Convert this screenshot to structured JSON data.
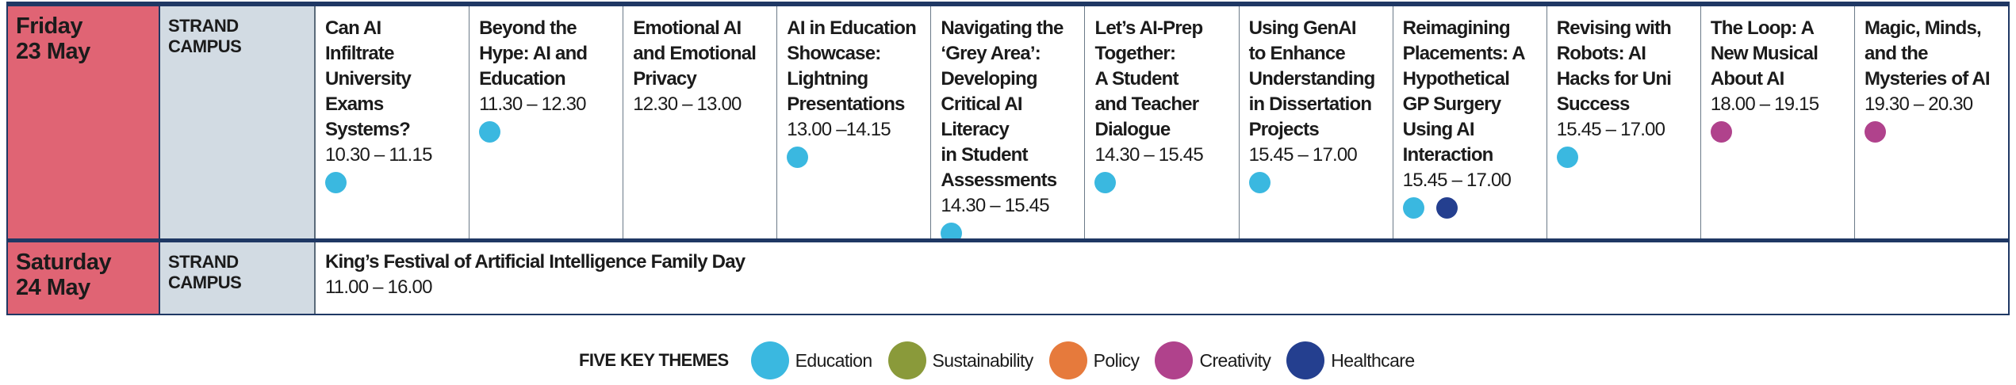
{
  "colors": {
    "Education": "#3ab8e0",
    "Sustainability": "#8a9a3a",
    "Policy": "#e67a3c",
    "Creativity": "#b0428c",
    "Healthcare": "#243f8f"
  },
  "rows": [
    {
      "day": "Friday\n23 May",
      "campus": "STRAND\nCAMPUS",
      "events": [
        {
          "title": "Can AI\nInfiltrate\nUniversity\nExams\nSystems?",
          "time": "10.30 – 11.15",
          "themes": [
            "Education"
          ]
        },
        {
          "title": "Beyond the\nHype: AI and\nEducation",
          "time": "11.30 – 12.30",
          "themes": [
            "Education"
          ]
        },
        {
          "title": "Emotional AI\nand Emotional\nPrivacy",
          "time": "12.30 – 13.00",
          "themes": []
        },
        {
          "title": "AI in Education\nShowcase:\nLightning\nPresentations",
          "time": "13.00 –14.15",
          "themes": [
            "Education"
          ]
        },
        {
          "title": "Navigating the\n‘Grey Area’:\nDeveloping\nCritical AI\nLiteracy\nin Student\nAssessments",
          "time": "14.30 – 15.45",
          "themes": [
            "Education"
          ]
        },
        {
          "title": "Let’s AI-Prep\nTogether:\nA Student\nand Teacher\nDialogue",
          "time": "14.30 – 15.45",
          "themes": [
            "Education"
          ]
        },
        {
          "title": "Using GenAI\nto Enhance\nUnderstanding\nin Dissertation\nProjects",
          "time": "15.45 – 17.00",
          "themes": [
            "Education"
          ]
        },
        {
          "title": "Reimagining\nPlacements: A\nHypothetical\nGP Surgery\nUsing AI\nInteraction",
          "time": "15.45 – 17.00",
          "themes": [
            "Education",
            "Healthcare"
          ]
        },
        {
          "title": "Revising with\nRobots: AI\nHacks for Uni\nSuccess",
          "time": "15.45 – 17.00",
          "themes": [
            "Education"
          ]
        },
        {
          "title": "The Loop: A\nNew Musical\nAbout AI",
          "time": "18.00 – 19.15",
          "themes": [
            "Creativity"
          ]
        },
        {
          "title": "Magic, Minds,\nand the\nMysteries of AI",
          "time": "19.30 – 20.30",
          "themes": [
            "Creativity"
          ]
        }
      ]
    },
    {
      "day": "Saturday\n24 May",
      "campus": "STRAND\nCAMPUS",
      "events": [
        {
          "title": "King’s Festival of Artificial Intelligence Family Day",
          "time": "11.00 – 16.00",
          "themes": []
        }
      ]
    }
  ],
  "legend": {
    "title": "FIVE KEY THEMES",
    "items": [
      "Education",
      "Sustainability",
      "Policy",
      "Creativity",
      "Healthcare"
    ]
  }
}
